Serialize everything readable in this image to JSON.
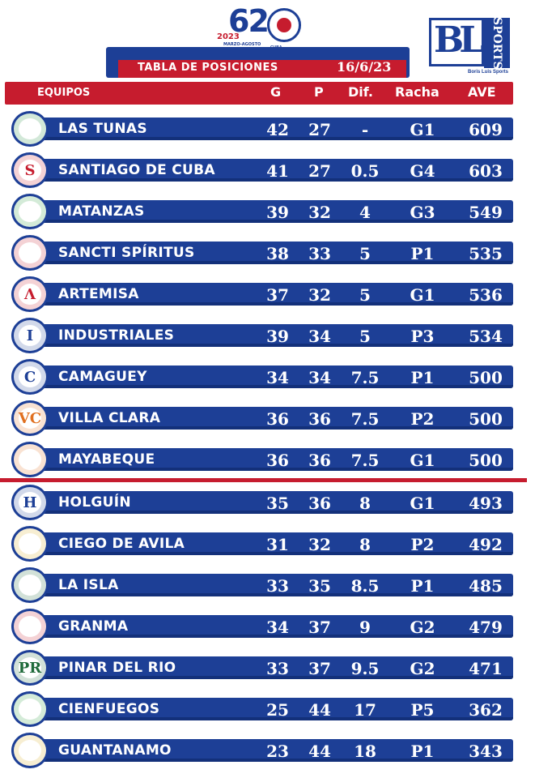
{
  "top_logo": {
    "number": "62",
    "year": "2023",
    "subtitle": "MARZO-AGOSTO",
    "seal_text": "CUBA"
  },
  "brand_logo": {
    "letters": "BL",
    "word": "SPORTS",
    "caption": "Boris Luis Sports"
  },
  "table_title": "TABLA DE POSICIONES",
  "date": "16/6/23",
  "headers": {
    "team": "EQUIPOS",
    "wins": "G",
    "losses": "P",
    "diff": "Dif.",
    "streak": "Racha",
    "avg": "AVE"
  },
  "colors": {
    "blue": "#1d3f96",
    "red": "#c61c2e"
  },
  "teams": [
    {
      "name": "LAS TUNAS",
      "g": "42",
      "p": "27",
      "dif": "-",
      "racha": "G1",
      "ave": "609",
      "logo_icon": "las-tunas-logo-icon",
      "logo_glyph": "",
      "logo_color": "#1f8a3a"
    },
    {
      "name": "SANTIAGO DE CUBA",
      "g": "41",
      "p": "27",
      "dif": "0.5",
      "racha": "G4",
      "ave": "603",
      "logo_icon": "santiago-logo-icon",
      "logo_glyph": "S",
      "logo_color": "#c61c2e"
    },
    {
      "name": "MATANZAS",
      "g": "39",
      "p": "32",
      "dif": "4",
      "racha": "G3",
      "ave": "549",
      "logo_icon": "matanzas-logo-icon",
      "logo_glyph": "",
      "logo_color": "#2a9a3a"
    },
    {
      "name": "SANCTI SPÍRITUS",
      "g": "38",
      "p": "33",
      "dif": "5",
      "racha": "P1",
      "ave": "535",
      "logo_icon": "sancti-spiritus-logo-icon",
      "logo_glyph": "",
      "logo_color": "#c61c2e"
    },
    {
      "name": "ARTEMISA",
      "g": "37",
      "p": "32",
      "dif": "5",
      "racha": "G1",
      "ave": "536",
      "logo_icon": "artemisa-logo-icon",
      "logo_glyph": "Λ",
      "logo_color": "#c61c2e"
    },
    {
      "name": "INDUSTRIALES",
      "g": "39",
      "p": "34",
      "dif": "5",
      "racha": "P3",
      "ave": "534",
      "logo_icon": "industriales-logo-icon",
      "logo_glyph": "I",
      "logo_color": "#1d3f96"
    },
    {
      "name": "CAMAGUEY",
      "g": "34",
      "p": "34",
      "dif": "7.5",
      "racha": "P1",
      "ave": "500",
      "logo_icon": "camaguey-logo-icon",
      "logo_glyph": "C",
      "logo_color": "#1d3f96"
    },
    {
      "name": "VILLA CLARA",
      "g": "36",
      "p": "36",
      "dif": "7.5",
      "racha": "P2",
      "ave": "500",
      "logo_icon": "villa-clara-logo-icon",
      "logo_glyph": "VC",
      "logo_color": "#e07020"
    },
    {
      "name": "MAYABEQUE",
      "g": "36",
      "p": "36",
      "dif": "7.5",
      "racha": "G1",
      "ave": "500",
      "logo_icon": "mayabeque-logo-icon",
      "logo_glyph": "",
      "logo_color": "#e07020"
    },
    {
      "name": "HOLGUÍN",
      "g": "35",
      "p": "36",
      "dif": "8",
      "racha": "G1",
      "ave": "493",
      "logo_icon": "holguin-logo-icon",
      "logo_glyph": "H",
      "logo_color": "#1d3f96"
    },
    {
      "name": "CIEGO DE AVILA",
      "g": "31",
      "p": "32",
      "dif": "8",
      "racha": "P2",
      "ave": "492",
      "logo_icon": "ciego-de-avila-logo-icon",
      "logo_glyph": "",
      "logo_color": "#d9a820"
    },
    {
      "name": "LA ISLA",
      "g": "33",
      "p": "35",
      "dif": "8.5",
      "racha": "P1",
      "ave": "485",
      "logo_icon": "la-isla-logo-icon",
      "logo_glyph": "",
      "logo_color": "#1f6a3a"
    },
    {
      "name": "GRANMA",
      "g": "34",
      "p": "37",
      "dif": "9",
      "racha": "G2",
      "ave": "479",
      "logo_icon": "granma-logo-icon",
      "logo_glyph": "",
      "logo_color": "#c61c2e"
    },
    {
      "name": "PINAR DEL RIO",
      "g": "33",
      "p": "37",
      "dif": "9.5",
      "racha": "G2",
      "ave": "471",
      "logo_icon": "pinar-del-rio-logo-icon",
      "logo_glyph": "PR",
      "logo_color": "#1f6a3a"
    },
    {
      "name": "CIENFUEGOS",
      "g": "25",
      "p": "44",
      "dif": "17",
      "racha": "P5",
      "ave": "362",
      "logo_icon": "cienfuegos-logo-icon",
      "logo_glyph": "",
      "logo_color": "#2a9a3a"
    },
    {
      "name": "GUANTANAMO",
      "g": "23",
      "p": "44",
      "dif": "18",
      "racha": "P1",
      "ave": "343",
      "logo_icon": "guantanamo-logo-icon",
      "logo_glyph": "",
      "logo_color": "#d9a820"
    }
  ]
}
